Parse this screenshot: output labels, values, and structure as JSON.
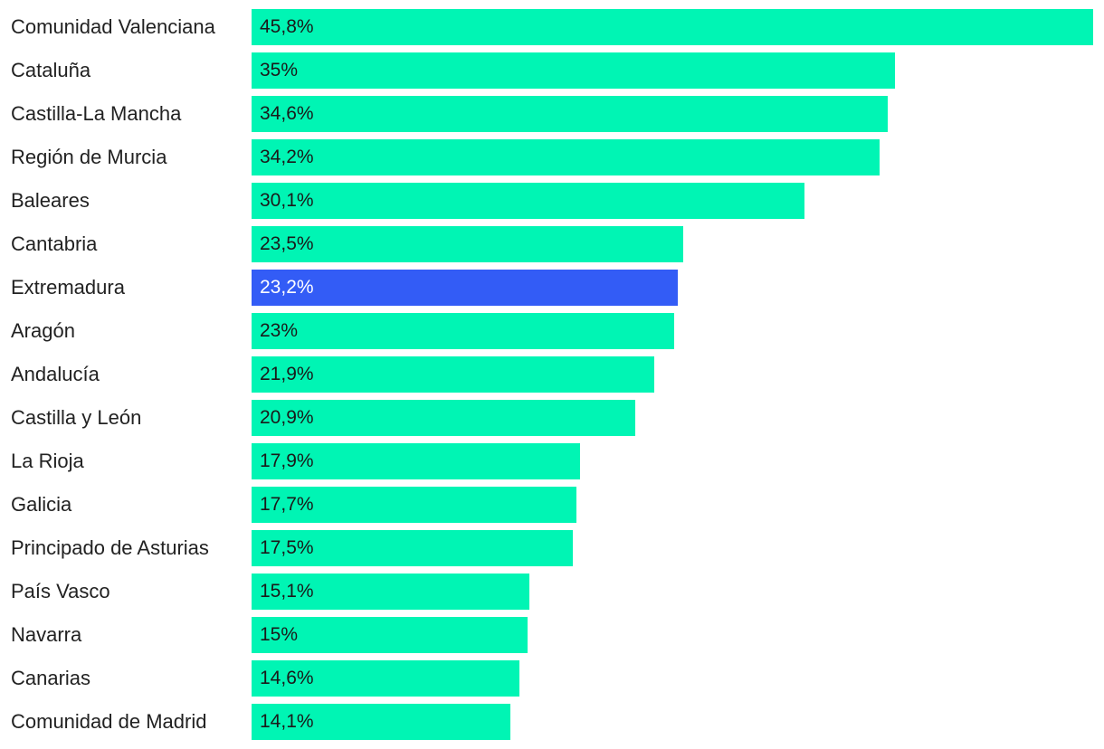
{
  "chart_data": {
    "type": "bar",
    "orientation": "horizontal",
    "categories": [
      "Comunidad Valenciana",
      "Cataluña",
      "Castilla-La Mancha",
      "Región de Murcia",
      "Baleares",
      "Cantabria",
      "Extremadura",
      "Aragón",
      "Andalucía",
      "Castilla y León",
      "La Rioja",
      "Galicia",
      "Principado de Asturias",
      "País Vasco",
      "Navarra",
      "Canarias",
      "Comunidad de Madrid"
    ],
    "values": [
      45.8,
      35,
      34.6,
      34.2,
      30.1,
      23.5,
      23.2,
      23,
      21.9,
      20.9,
      17.9,
      17.7,
      17.5,
      15.1,
      15,
      14.6,
      14.1
    ],
    "value_labels": [
      "45,8%",
      "35%",
      "34,6%",
      "34,2%",
      "30,1%",
      "23,5%",
      "23,2%",
      "23%",
      "21,9%",
      "20,9%",
      "17,9%",
      "17,7%",
      "17,5%",
      "15,1%",
      "15%",
      "14,6%",
      "14,1%"
    ],
    "highlight": "Extremadura",
    "colors": {
      "bar": "#00f5b4",
      "highlight": "#335cf6",
      "label_text": "#222222",
      "value_text": "#1a1a1a",
      "highlight_value_text": "#ffffff"
    },
    "title": "",
    "xlabel": "",
    "ylabel": "",
    "xlim": [
      0,
      45.8
    ],
    "grid": false,
    "legend": "none"
  }
}
